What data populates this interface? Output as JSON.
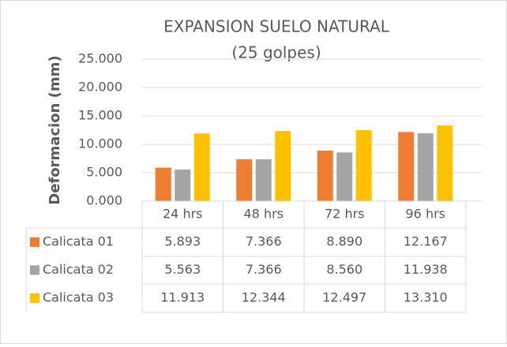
{
  "chart_data": {
    "type": "bar",
    "title": "EXPANSION SUELO NATURAL",
    "subtitle": "(25 golpes)",
    "y_label": "Deformacion (mm)",
    "categories": [
      "24 hrs",
      "48 hrs",
      "72 hrs",
      "96 hrs"
    ],
    "series": [
      {
        "name": "Calicata 01",
        "color": "#ed7d31",
        "values": [
          5.893,
          7.366,
          8.89,
          12.167
        ],
        "value_labels": [
          "5.893",
          "7.366",
          "8.890",
          "12.167"
        ]
      },
      {
        "name": "Calicata 02",
        "color": "#a5a5a5",
        "values": [
          5.563,
          7.366,
          8.56,
          11.938
        ],
        "value_labels": [
          "5.563",
          "7.366",
          "8.560",
          "11.938"
        ]
      },
      {
        "name": "Calicata 03",
        "color": "#ffc000",
        "values": [
          11.913,
          12.344,
          12.497,
          13.31
        ],
        "value_labels": [
          "11.913",
          "12.344",
          "12.497",
          "13.310"
        ]
      }
    ],
    "ylim": [
      0,
      25
    ],
    "yticks": [
      {
        "value": 0,
        "label": "0.000"
      },
      {
        "value": 5,
        "label": "5.000"
      },
      {
        "value": 10,
        "label": "10.000"
      },
      {
        "value": 15,
        "label": "15.000"
      },
      {
        "value": 20,
        "label": "20.000"
      },
      {
        "value": 25,
        "label": "25.000"
      }
    ],
    "grid": true,
    "data_table": true
  }
}
